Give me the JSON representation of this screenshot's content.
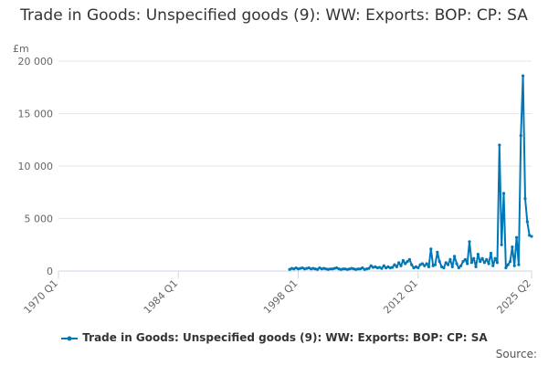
{
  "title": "Trade in Goods: Unspecified goods (9): WW: Exports: BOP: CP: SA",
  "source_label": "Source:",
  "colors": {
    "series": "#0077b6",
    "grid": "#e6e6e6",
    "axis": "#ccd6eb",
    "text": "#666666"
  },
  "chart_data": {
    "type": "line",
    "ylabel": "£m",
    "xlim": [
      "1970 Q1",
      "2025 Q2"
    ],
    "ylim": [
      0,
      20000
    ],
    "x_ticks": [
      "1970 Q1",
      "1984 Q1",
      "1998 Q1",
      "2012 Q1",
      "2025 Q2"
    ],
    "y_ticks": [
      0,
      5000,
      10000,
      15000,
      20000
    ],
    "y_tick_labels": [
      "0",
      "5 000",
      "10 000",
      "15 000",
      "20 000"
    ],
    "grid": "horizontal",
    "legend_position": "bottom",
    "series": [
      {
        "name": "Trade in Goods: Unspecified goods (9): WW: Exports: BOP: CP: SA",
        "points": [
          [
            "1997 Q1",
            150
          ],
          [
            "1997 Q2",
            250
          ],
          [
            "1997 Q3",
            200
          ],
          [
            "1997 Q4",
            300
          ],
          [
            "1998 Q1",
            200
          ],
          [
            "1998 Q2",
            250
          ],
          [
            "1998 Q3",
            300
          ],
          [
            "1998 Q4",
            200
          ],
          [
            "1999 Q1",
            250
          ],
          [
            "1999 Q2",
            300
          ],
          [
            "1999 Q3",
            200
          ],
          [
            "1999 Q4",
            250
          ],
          [
            "2000 Q1",
            200
          ],
          [
            "2000 Q2",
            150
          ],
          [
            "2000 Q3",
            300
          ],
          [
            "2000 Q4",
            200
          ],
          [
            "2001 Q1",
            250
          ],
          [
            "2001 Q2",
            200
          ],
          [
            "2001 Q3",
            150
          ],
          [
            "2001 Q4",
            200
          ],
          [
            "2002 Q1",
            200
          ],
          [
            "2002 Q2",
            250
          ],
          [
            "2002 Q3",
            300
          ],
          [
            "2002 Q4",
            200
          ],
          [
            "2003 Q1",
            150
          ],
          [
            "2003 Q2",
            200
          ],
          [
            "2003 Q3",
            200
          ],
          [
            "2003 Q4",
            150
          ],
          [
            "2004 Q1",
            200
          ],
          [
            "2004 Q2",
            250
          ],
          [
            "2004 Q3",
            200
          ],
          [
            "2004 Q4",
            150
          ],
          [
            "2005 Q1",
            200
          ],
          [
            "2005 Q2",
            200
          ],
          [
            "2005 Q3",
            300
          ],
          [
            "2005 Q4",
            150
          ],
          [
            "2006 Q1",
            200
          ],
          [
            "2006 Q2",
            250
          ],
          [
            "2006 Q3",
            500
          ],
          [
            "2006 Q4",
            350
          ],
          [
            "2007 Q1",
            400
          ],
          [
            "2007 Q2",
            300
          ],
          [
            "2007 Q3",
            350
          ],
          [
            "2007 Q4",
            250
          ],
          [
            "2008 Q1",
            500
          ],
          [
            "2008 Q2",
            300
          ],
          [
            "2008 Q3",
            400
          ],
          [
            "2008 Q4",
            300
          ],
          [
            "2009 Q1",
            350
          ],
          [
            "2009 Q2",
            600
          ],
          [
            "2009 Q3",
            400
          ],
          [
            "2009 Q4",
            800
          ],
          [
            "2010 Q1",
            500
          ],
          [
            "2010 Q2",
            1000
          ],
          [
            "2010 Q3",
            700
          ],
          [
            "2010 Q4",
            900
          ],
          [
            "2011 Q1",
            1100
          ],
          [
            "2011 Q2",
            600
          ],
          [
            "2011 Q3",
            300
          ],
          [
            "2011 Q4",
            400
          ],
          [
            "2012 Q1",
            300
          ],
          [
            "2012 Q2",
            600
          ],
          [
            "2012 Q3",
            700
          ],
          [
            "2012 Q4",
            500
          ],
          [
            "2013 Q1",
            700
          ],
          [
            "2013 Q2",
            400
          ],
          [
            "2013 Q3",
            2100
          ],
          [
            "2013 Q4",
            500
          ],
          [
            "2014 Q1",
            600
          ],
          [
            "2014 Q2",
            1800
          ],
          [
            "2014 Q3",
            900
          ],
          [
            "2014 Q4",
            400
          ],
          [
            "2015 Q1",
            300
          ],
          [
            "2015 Q2",
            800
          ],
          [
            "2015 Q3",
            600
          ],
          [
            "2015 Q4",
            1100
          ],
          [
            "2016 Q1",
            400
          ],
          [
            "2016 Q2",
            1400
          ],
          [
            "2016 Q3",
            700
          ],
          [
            "2016 Q4",
            300
          ],
          [
            "2017 Q1",
            500
          ],
          [
            "2017 Q2",
            900
          ],
          [
            "2017 Q3",
            1100
          ],
          [
            "2017 Q4",
            700
          ],
          [
            "2018 Q1",
            2800
          ],
          [
            "2018 Q2",
            800
          ],
          [
            "2018 Q3",
            1200
          ],
          [
            "2018 Q4",
            400
          ],
          [
            "2019 Q1",
            1600
          ],
          [
            "2019 Q2",
            900
          ],
          [
            "2019 Q3",
            1200
          ],
          [
            "2019 Q4",
            800
          ],
          [
            "2020 Q1",
            1100
          ],
          [
            "2020 Q2",
            700
          ],
          [
            "2020 Q3",
            1700
          ],
          [
            "2020 Q4",
            500
          ],
          [
            "2021 Q1",
            1200
          ],
          [
            "2021 Q2",
            800
          ],
          [
            "2021 Q3",
            12000
          ],
          [
            "2021 Q4",
            2500
          ],
          [
            "2022 Q1",
            7400
          ],
          [
            "2022 Q2",
            300
          ],
          [
            "2022 Q3",
            600
          ],
          [
            "2022 Q4",
            900
          ],
          [
            "2023 Q1",
            2300
          ],
          [
            "2023 Q2",
            500
          ],
          [
            "2023 Q3",
            3200
          ],
          [
            "2023 Q4",
            600
          ],
          [
            "2024 Q1",
            12900
          ],
          [
            "2024 Q2",
            18600
          ],
          [
            "2024 Q3",
            6900
          ],
          [
            "2024 Q4",
            4700
          ],
          [
            "2025 Q1",
            3400
          ],
          [
            "2025 Q2",
            3300
          ]
        ]
      }
    ]
  }
}
